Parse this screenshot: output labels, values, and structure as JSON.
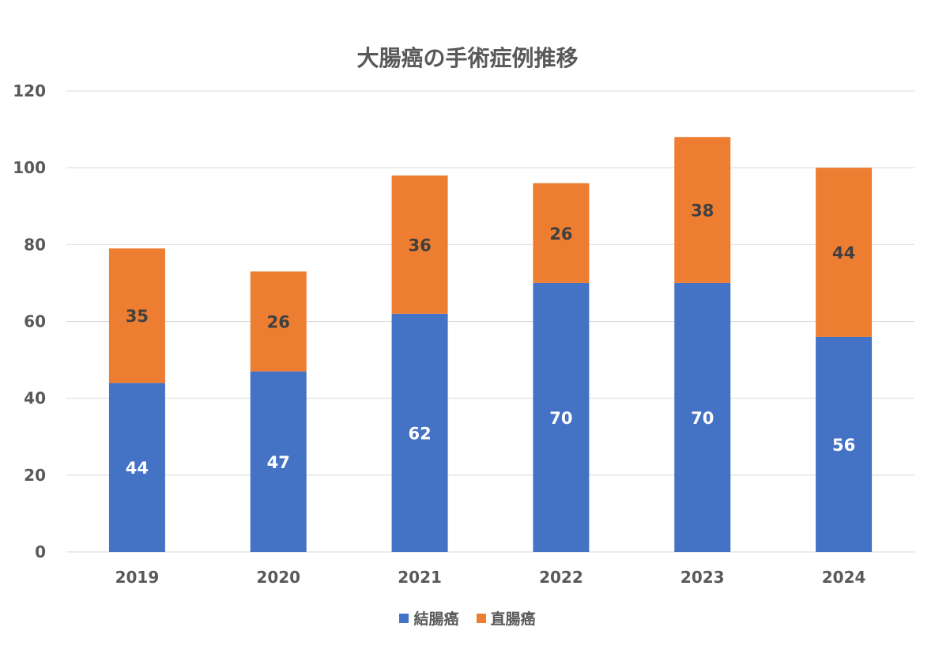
{
  "chart_data": {
    "type": "bar",
    "stacked": true,
    "title": "大腸癌の手術症例推移",
    "categories": [
      "2019",
      "2020",
      "2021",
      "2022",
      "2023",
      "2024"
    ],
    "series": [
      {
        "name": "結腸癌",
        "values": [
          44,
          47,
          62,
          70,
          70,
          56
        ],
        "color": "#4472C4",
        "label_color": "#FFFFFF"
      },
      {
        "name": "直腸癌",
        "values": [
          35,
          26,
          36,
          26,
          38,
          44
        ],
        "color": "#ED7D31",
        "label_color": "#404040"
      }
    ],
    "yticks": [
      "0",
      "20",
      "40",
      "60",
      "80",
      "100",
      "120"
    ],
    "ylim": [
      0,
      120
    ],
    "grid": true,
    "legend_position": "bottom",
    "gridline_color": "#D9D9D9"
  }
}
